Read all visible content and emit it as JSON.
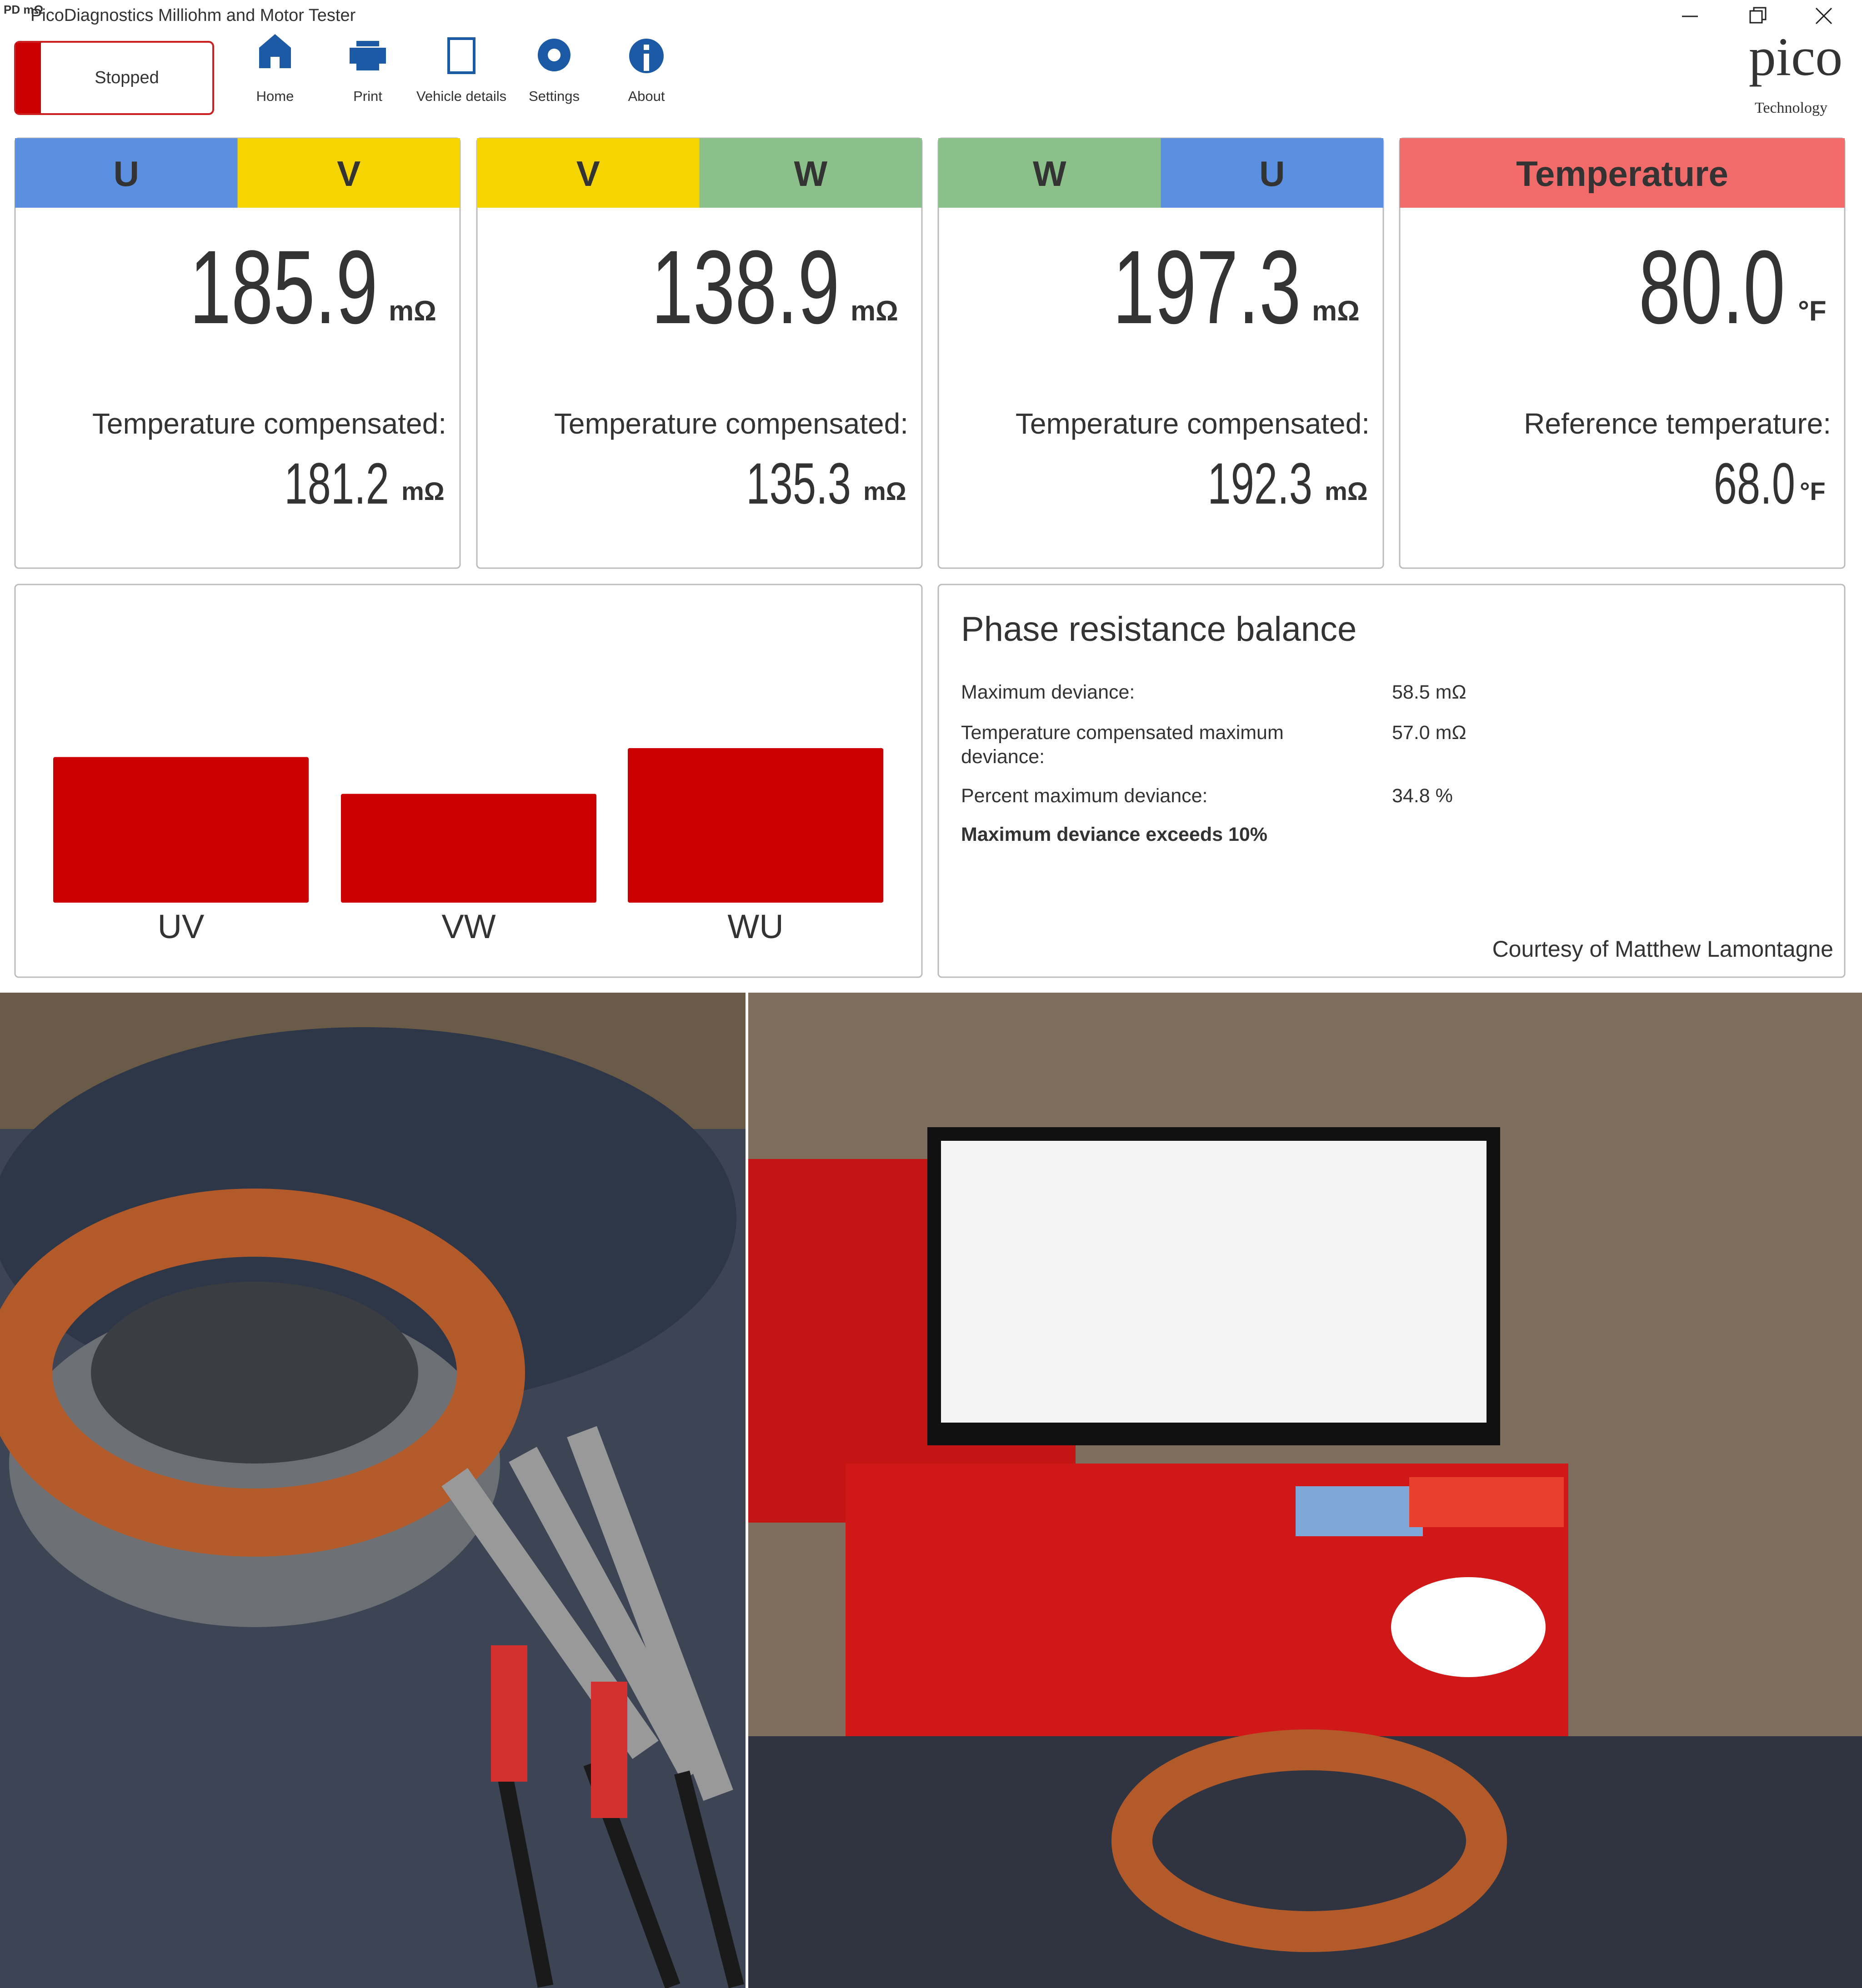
{
  "window": {
    "app_icon": "PD mΩ",
    "title": "PicoDiagnostics Milliohm and Motor Tester"
  },
  "toolbar": {
    "status": "Stopped",
    "buttons": [
      "Home",
      "Print",
      "Vehicle details",
      "Settings",
      "About"
    ]
  },
  "logo": {
    "name": "pico",
    "tagline": "Technology"
  },
  "cards": [
    {
      "phases": [
        "U",
        "V"
      ],
      "value": 185.9,
      "unit": "mΩ",
      "compensated_label": "Temperature compensated:",
      "compensated_value": 181.2,
      "compensated_unit": "mΩ"
    },
    {
      "phases": [
        "V",
        "W"
      ],
      "value": 138.9,
      "unit": "mΩ",
      "compensated_label": "Temperature compensated:",
      "compensated_value": 135.3,
      "compensated_unit": "mΩ"
    },
    {
      "phases": [
        "W",
        "U"
      ],
      "value": 197.3,
      "unit": "mΩ",
      "compensated_label": "Temperature compensated:",
      "compensated_value": 192.3,
      "compensated_unit": "mΩ"
    }
  ],
  "temperature": {
    "title": "Temperature",
    "value": "80.0",
    "unit": "°F",
    "reference_label": "Reference temperature:",
    "reference_value": "68.0",
    "reference_unit": "°F"
  },
  "bar_chart": {
    "categories": [
      "UV",
      "VW",
      "WU"
    ],
    "color": "#cc0000"
  },
  "balance": {
    "title": "Phase resistance balance",
    "rows": [
      {
        "label": "Maximum deviance:",
        "value": "58.5 mΩ"
      },
      {
        "label": [
          "Temperature compensated maximum",
          "deviance:"
        ],
        "value": "57.0 mΩ"
      },
      {
        "label": "Percent maximum deviance:",
        "value": "34.8 %"
      }
    ],
    "warning": "Maximum deviance exceeds 10%",
    "credit": "Courtesy of Matthew Lamontagne"
  }
}
